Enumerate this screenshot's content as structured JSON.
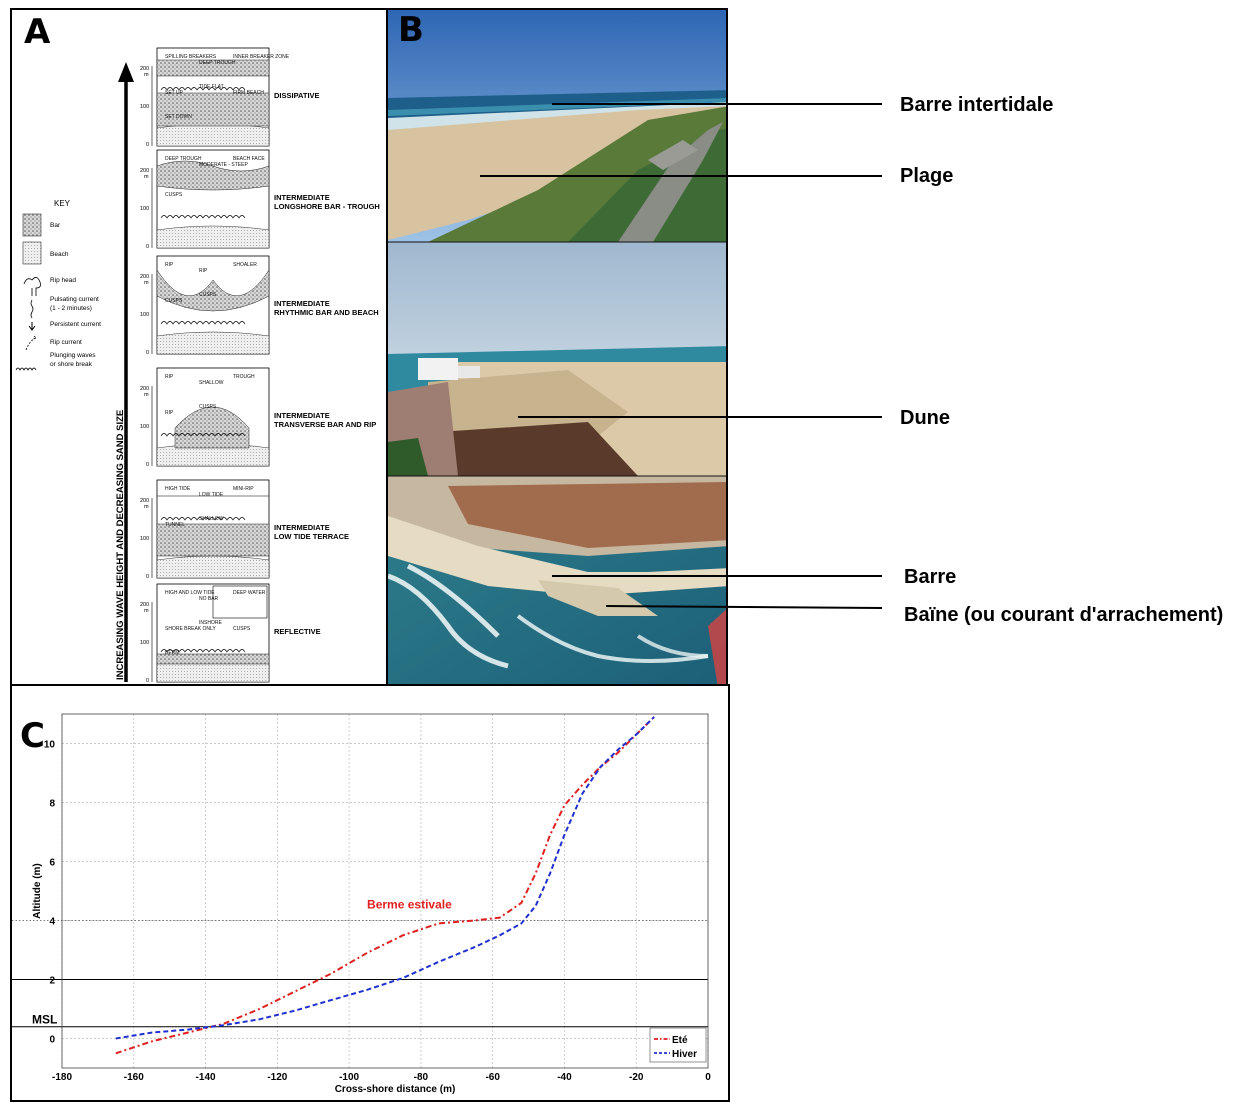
{
  "panel_a": {
    "letter": "A",
    "axis_label": "INCREASING WAVE HEIGHT AND DECREASING SAND SIZE",
    "key": {
      "title": "KEY",
      "items": [
        "Bar",
        "Beach",
        "Rip head",
        "Pulsating current",
        "(1 - 2 minutes)",
        "Persistent current",
        "Rip current",
        "Plunging waves",
        "or shore break"
      ]
    },
    "states": [
      {
        "name": "DISSIPATIVE",
        "name2": "",
        "labels": [
          "SPILLING BREAKERS",
          "DEEP TROUGH",
          "INNER BREAKER ZONE",
          "SET UP",
          "TIDE FLAT",
          "FIRM BEACH",
          "SET DOWN"
        ]
      },
      {
        "name": "INTERMEDIATE",
        "name2": "LONGSHORE BAR - TROUGH",
        "labels": [
          "DEEP TROUGH",
          "MODERATE - STEEP",
          "BEACH FACE",
          "CUSPS"
        ]
      },
      {
        "name": "INTERMEDIATE",
        "name2": "RHYTHMIC BAR AND BEACH",
        "labels": [
          "RIP",
          "RIP",
          "SHOALER",
          "CUSPS",
          "CUSPS"
        ]
      },
      {
        "name": "INTERMEDIATE",
        "name2": "TRANSVERSE BAR AND RIP",
        "labels": [
          "RIP",
          "SHALLOW",
          "TROUGH",
          "RIP",
          "CUSPS"
        ]
      },
      {
        "name": "INTERMEDIATE",
        "name2": "LOW TIDE TERRACE",
        "labels": [
          "HIGH TIDE",
          "LOW TIDE",
          "MINI-RIP",
          "TUNNEL",
          "SHALLOW"
        ]
      },
      {
        "name": "REFLECTIVE",
        "name2": "",
        "labels": [
          "HIGH AND LOW TIDE",
          "NO BAR",
          "DEEP WATER",
          "SHORE BREAK ONLY",
          "INSHORE",
          "CUSPS",
          "BERM"
        ]
      }
    ],
    "scale_labels": [
      "200",
      "m",
      "100",
      "0"
    ]
  },
  "panel_b": {
    "letter": "B",
    "callouts": [
      "Barre intertidale",
      "Plage",
      "Dune",
      "Barre",
      "Baïne (ou courant d'arrachement)"
    ],
    "colors": {
      "sky": "#3d7fc8",
      "sea": "#1f6f8e",
      "sand": "#d8c3a0",
      "vegetation": "#3e6b35"
    }
  },
  "panel_c": {
    "letter": "C",
    "annotation": "Berme estivale",
    "msl_label": "MSL",
    "chart_data": {
      "type": "line",
      "xlabel": "Cross-shore distance (m)",
      "ylabel": "Altitude (m)",
      "xlim": [
        -180,
        0
      ],
      "ylim": [
        -1,
        11
      ],
      "xticks": [
        "-180",
        "-160",
        "-140",
        "-120",
        "-100",
        "-80",
        "-60",
        "-40",
        "-20",
        "0"
      ],
      "yticks": [
        "0",
        "2",
        "4",
        "6",
        "8",
        "10"
      ],
      "grid": true,
      "legend_position": "bottom-right",
      "hlines": [
        {
          "y": 2
        },
        {
          "y": 0.4,
          "label": "MSL"
        }
      ],
      "series": [
        {
          "name": "Eté",
          "color": "#e02020",
          "style": "dash-dot",
          "x": [
            -165,
            -155,
            -145,
            -135,
            -125,
            -115,
            -105,
            -95,
            -85,
            -75,
            -65,
            -58,
            -52,
            -48,
            -44,
            -40,
            -35,
            -30,
            -25,
            -20,
            -15
          ],
          "y": [
            -0.5,
            -0.1,
            0.2,
            0.5,
            1.0,
            1.6,
            2.2,
            2.9,
            3.5,
            3.9,
            4.0,
            4.1,
            4.6,
            5.6,
            6.9,
            7.9,
            8.6,
            9.2,
            9.7,
            10.3,
            10.9
          ]
        },
        {
          "name": "Hiver",
          "color": "#2030d0",
          "style": "dashed",
          "x": [
            -165,
            -155,
            -145,
            -135,
            -125,
            -115,
            -105,
            -95,
            -85,
            -75,
            -65,
            -58,
            -52,
            -48,
            -44,
            -40,
            -35,
            -30,
            -25,
            -20,
            -15
          ],
          "y": [
            0.0,
            0.2,
            0.3,
            0.45,
            0.65,
            0.95,
            1.3,
            1.65,
            2.05,
            2.6,
            3.1,
            3.5,
            3.9,
            4.5,
            5.6,
            6.9,
            8.3,
            9.2,
            9.8,
            10.3,
            10.9
          ]
        }
      ]
    }
  }
}
